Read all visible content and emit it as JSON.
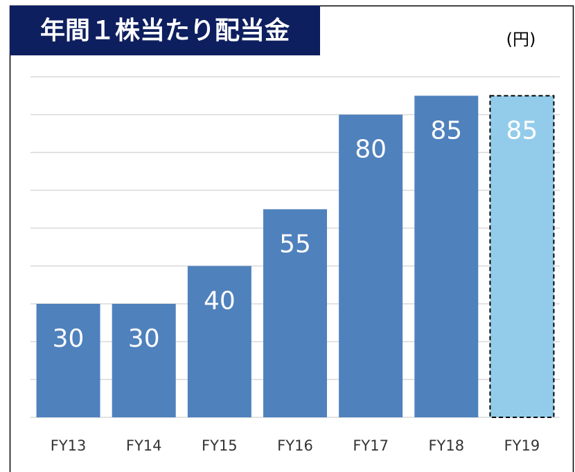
{
  "chart_data": {
    "type": "bar",
    "title": "年間１株当たり配当金",
    "unit_label": "(円)",
    "categories": [
      "FY13",
      "FY14",
      "FY15",
      "FY16",
      "FY17",
      "FY18",
      "FY19"
    ],
    "values": [
      30,
      30,
      40,
      55,
      80,
      85,
      85
    ],
    "colors": [
      "#4f81bd",
      "#4f81bd",
      "#4f81bd",
      "#4f81bd",
      "#4f81bd",
      "#4f81bd",
      "#93cceb"
    ],
    "dashed_border": [
      false,
      false,
      false,
      false,
      false,
      false,
      true
    ],
    "ylim": [
      0,
      90
    ],
    "yticks": [
      0,
      10,
      20,
      30,
      40,
      50,
      60,
      70,
      80,
      90
    ],
    "grid": true
  }
}
